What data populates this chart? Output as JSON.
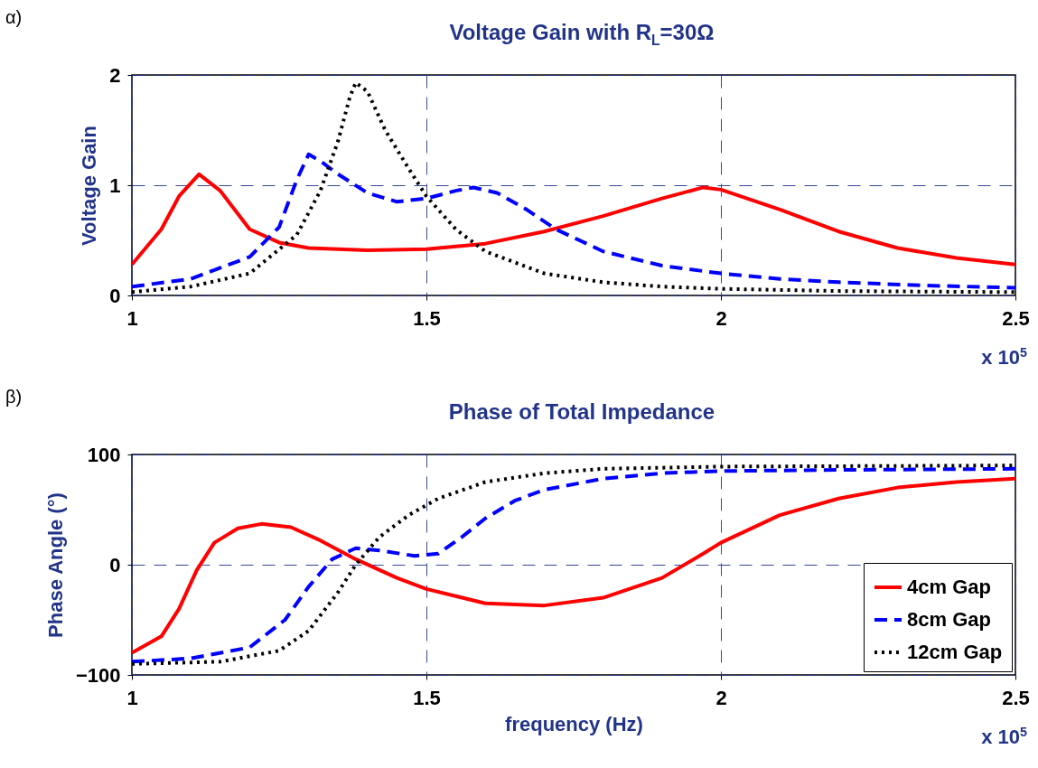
{
  "chart_data": [
    {
      "type": "line",
      "title": "Voltage Gain with R$_{L}$=30Ω",
      "ylabel": "Voltage Gain",
      "annotations": [
        "α)",
        "x 10$^{5}$"
      ],
      "xlim": [
        1,
        2.5
      ],
      "xticks": [
        1,
        1.5,
        2,
        2.5
      ],
      "ylim": [
        0,
        2
      ],
      "yticks": [
        0,
        1,
        2
      ],
      "grid": true,
      "legend": false,
      "series": [
        {
          "color": "#ff0000",
          "line_style": "solid",
          "x": [
            1.0,
            1.05,
            1.08,
            1.114,
            1.15,
            1.2,
            1.25,
            1.3,
            1.4,
            1.5,
            1.6,
            1.7,
            1.8,
            1.9,
            1.97,
            2.0,
            2.1,
            2.2,
            2.3,
            2.4,
            2.5
          ],
          "values": [
            0.28,
            0.6,
            0.9,
            1.1,
            0.95,
            0.6,
            0.48,
            0.43,
            0.41,
            0.42,
            0.47,
            0.58,
            0.72,
            0.88,
            0.98,
            0.96,
            0.78,
            0.58,
            0.43,
            0.34,
            0.28
          ]
        },
        {
          "color": "#0000ff",
          "line_style": "dashed",
          "x": [
            1.0,
            1.1,
            1.2,
            1.25,
            1.28,
            1.3,
            1.32,
            1.35,
            1.4,
            1.45,
            1.5,
            1.55,
            1.58,
            1.62,
            1.67,
            1.72,
            1.8,
            1.9,
            2.0,
            2.1,
            2.2,
            2.35,
            2.5
          ],
          "values": [
            0.08,
            0.15,
            0.35,
            0.62,
            1.05,
            1.28,
            1.22,
            1.1,
            0.93,
            0.85,
            0.88,
            0.95,
            0.98,
            0.93,
            0.78,
            0.6,
            0.4,
            0.27,
            0.2,
            0.15,
            0.12,
            0.09,
            0.07
          ]
        },
        {
          "color": "#000000",
          "line_style": "dotted",
          "x": [
            1.0,
            1.1,
            1.2,
            1.28,
            1.32,
            1.35,
            1.37,
            1.38,
            1.4,
            1.43,
            1.47,
            1.5,
            1.55,
            1.6,
            1.7,
            1.8,
            1.9,
            2.0,
            2.2,
            2.5
          ],
          "values": [
            0.03,
            0.08,
            0.2,
            0.55,
            0.95,
            1.4,
            1.8,
            1.93,
            1.85,
            1.5,
            1.15,
            0.9,
            0.6,
            0.4,
            0.2,
            0.12,
            0.08,
            0.06,
            0.04,
            0.03
          ]
        }
      ]
    },
    {
      "type": "line",
      "title": "Phase of Total Impedance",
      "xlabel": "frequency (Hz)",
      "ylabel": "Phase Angle (°)",
      "annotations": [
        "β)",
        "x 10$^{5}$"
      ],
      "xlim": [
        1,
        2.5
      ],
      "xticks": [
        1,
        1.5,
        2,
        2.5
      ],
      "ylim": [
        -100,
        100
      ],
      "yticks": [
        -100,
        0,
        100
      ],
      "grid": true,
      "legend": "bottom right",
      "series": [
        {
          "name": "4cm Gap",
          "color": "#ff0000",
          "line_style": "solid",
          "x": [
            1.0,
            1.05,
            1.08,
            1.11,
            1.14,
            1.18,
            1.22,
            1.27,
            1.32,
            1.38,
            1.45,
            1.5,
            1.6,
            1.7,
            1.8,
            1.9,
            1.97,
            2.0,
            2.1,
            2.2,
            2.3,
            2.4,
            2.5
          ],
          "values": [
            -80,
            -65,
            -40,
            -5,
            20,
            33,
            37,
            34,
            22,
            5,
            -12,
            -22,
            -35,
            -37,
            -30,
            -12,
            10,
            20,
            45,
            60,
            70,
            75,
            78
          ]
        },
        {
          "name": "8cm Gap",
          "color": "#0000ff",
          "line_style": "dashed",
          "x": [
            1.0,
            1.1,
            1.2,
            1.26,
            1.3,
            1.34,
            1.38,
            1.42,
            1.48,
            1.52,
            1.56,
            1.6,
            1.65,
            1.7,
            1.8,
            1.9,
            2.0,
            2.2,
            2.5
          ],
          "values": [
            -88,
            -85,
            -75,
            -50,
            -20,
            5,
            15,
            13,
            8,
            10,
            25,
            42,
            58,
            68,
            78,
            83,
            85,
            86,
            87
          ]
        },
        {
          "name": "12cm Gap",
          "color": "#000000",
          "line_style": "dotted",
          "x": [
            1.0,
            1.15,
            1.25,
            1.3,
            1.35,
            1.38,
            1.42,
            1.47,
            1.52,
            1.6,
            1.7,
            1.8,
            2.0,
            2.5
          ],
          "values": [
            -90,
            -88,
            -78,
            -60,
            -25,
            0,
            25,
            45,
            60,
            75,
            83,
            87,
            89,
            90
          ]
        }
      ]
    }
  ]
}
